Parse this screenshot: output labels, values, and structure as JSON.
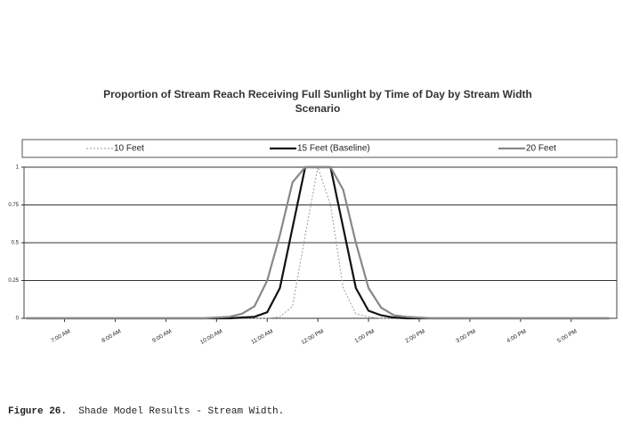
{
  "chart_data": {
    "type": "line",
    "title": "Proportion of Stream Reach Receiving Full Sunlight by Time of Day by Stream Width Scenario",
    "x": [
      6.25,
      9.5,
      9.75,
      10,
      10.25,
      10.5,
      10.75,
      11,
      11.25,
      11.5,
      11.75,
      12,
      12.25,
      12.5,
      12.75,
      13,
      13.25,
      13.5,
      13.75,
      14,
      14.25,
      14.5,
      17.75
    ],
    "series": [
      {
        "name": "10 Feet",
        "color": "#aaaaaa",
        "dash": "2,2",
        "width": 1.2,
        "values": [
          0,
          0,
          0,
          0,
          0,
          0,
          0,
          0,
          0.01,
          0.08,
          0.55,
          1,
          0.75,
          0.2,
          0.03,
          0.01,
          0,
          0,
          0,
          0,
          0,
          0,
          0
        ]
      },
      {
        "name": "15 Feet (Baseline)",
        "color": "#111111",
        "dash": "",
        "width": 2.2,
        "values": [
          0,
          0,
          0,
          0,
          0,
          0.005,
          0.01,
          0.04,
          0.2,
          0.6,
          1,
          1,
          1,
          0.6,
          0.2,
          0.05,
          0.02,
          0.005,
          0,
          0,
          0,
          0,
          0
        ]
      },
      {
        "name": "20 Feet",
        "color": "#888888",
        "dash": "",
        "width": 2.2,
        "values": [
          0,
          0,
          0,
          0.005,
          0.01,
          0.03,
          0.08,
          0.25,
          0.55,
          0.9,
          1,
          1,
          1,
          0.85,
          0.5,
          0.2,
          0.07,
          0.02,
          0.01,
          0.005,
          0,
          0,
          0
        ]
      }
    ],
    "xlim": [
      6.2,
      17.9
    ],
    "xticks": [
      {
        "value": 7,
        "label": "7:00 AM"
      },
      {
        "value": 8,
        "label": "8:00 AM"
      },
      {
        "value": 9,
        "label": "9:00 AM"
      },
      {
        "value": 10,
        "label": "10:00 AM"
      },
      {
        "value": 11,
        "label": "11:00 AM"
      },
      {
        "value": 12,
        "label": "12:00 PM"
      },
      {
        "value": 13,
        "label": "1:00 PM"
      },
      {
        "value": 14,
        "label": "2:00 PM"
      },
      {
        "value": 15,
        "label": "3:00 PM"
      },
      {
        "value": 16,
        "label": "4:00 PM"
      },
      {
        "value": 17,
        "label": "5:00 PM"
      }
    ],
    "ylim": [
      0,
      1
    ],
    "yticks": [
      0,
      0.25,
      0.5,
      0.75,
      1
    ],
    "grid": true,
    "legend": "top"
  },
  "caption": {
    "label": "Figure 26.",
    "text": "Shade Model Results - Stream Width."
  }
}
